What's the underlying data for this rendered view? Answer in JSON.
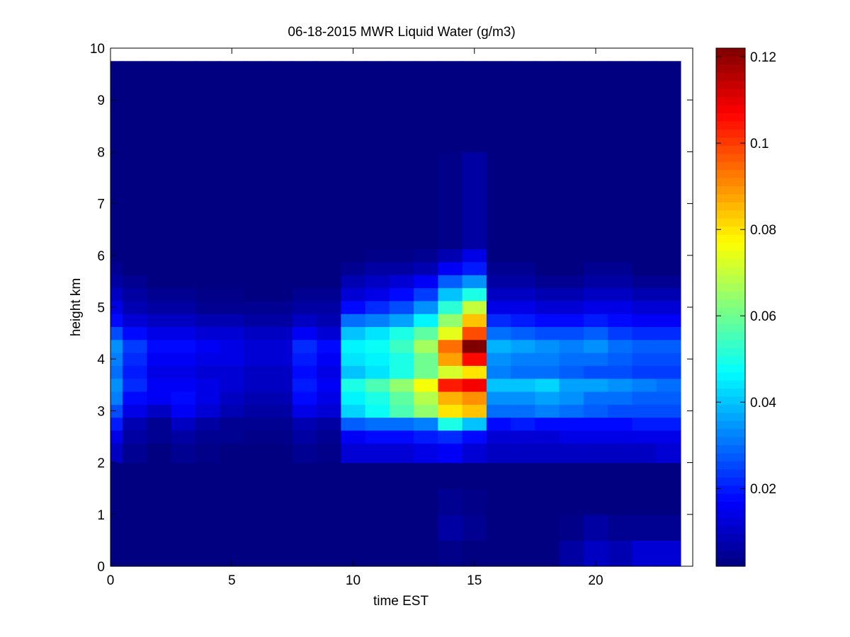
{
  "chart_data": {
    "type": "heatmap",
    "title": "06-18-2015 MWR Liquid Water (g/m3)",
    "xlabel": "time EST",
    "ylabel": "height km",
    "xlim": [
      0,
      24
    ],
    "ylim": [
      0,
      10
    ],
    "xticks": [
      0,
      5,
      10,
      15,
      20
    ],
    "yticks": [
      0,
      1,
      2,
      3,
      4,
      5,
      6,
      7,
      8,
      9,
      10
    ],
    "colorbar": {
      "colormap": "jet",
      "range": [
        0.002,
        0.122
      ],
      "ticks": [
        0.02,
        0.04,
        0.06,
        0.08,
        0.1,
        0.12
      ],
      "tick_labels": [
        "0.02",
        "0.04",
        "0.06",
        "0.08",
        "0.1",
        "0.12"
      ]
    },
    "data_extent": {
      "x": [
        0,
        23.5
      ],
      "y": [
        0,
        9.75
      ]
    },
    "time_hours": [
      0,
      1,
      2,
      3,
      4,
      5,
      6,
      7,
      8,
      9,
      10,
      11,
      12,
      13,
      14,
      15,
      16,
      17,
      18,
      19,
      20,
      21,
      22,
      23
    ],
    "height_km": [
      0.25,
      0.75,
      1.25,
      1.75,
      2.25,
      2.5,
      2.75,
      3.0,
      3.25,
      3.5,
      3.75,
      4.0,
      4.25,
      4.5,
      4.75,
      5.0,
      5.25,
      5.5,
      5.75,
      6.0,
      6.25,
      9.75
    ],
    "values": [
      [
        0.002,
        0.002,
        0.002,
        0.002,
        0.002,
        0.002,
        0.002,
        0.002,
        0.002,
        0.002,
        0.002,
        0.002,
        0.002,
        0.002,
        0.003,
        0.002,
        0.002,
        0.002,
        0.002,
        0.006,
        0.01,
        0.008,
        0.012,
        0.012
      ],
      [
        0.002,
        0.002,
        0.002,
        0.002,
        0.002,
        0.002,
        0.002,
        0.002,
        0.002,
        0.002,
        0.002,
        0.002,
        0.002,
        0.002,
        0.006,
        0.004,
        0.002,
        0.002,
        0.002,
        0.003,
        0.006,
        0.004,
        0.004,
        0.004
      ],
      [
        0.002,
        0.002,
        0.002,
        0.002,
        0.002,
        0.002,
        0.002,
        0.002,
        0.002,
        0.002,
        0.002,
        0.002,
        0.002,
        0.002,
        0.004,
        0.003,
        0.002,
        0.002,
        0.002,
        0.002,
        0.002,
        0.002,
        0.002,
        0.002
      ],
      [
        0.002,
        0.002,
        0.002,
        0.002,
        0.002,
        0.002,
        0.002,
        0.002,
        0.002,
        0.002,
        0.002,
        0.002,
        0.002,
        0.002,
        0.002,
        0.002,
        0.002,
        0.002,
        0.002,
        0.002,
        0.002,
        0.002,
        0.002,
        0.002
      ],
      [
        0.01,
        0.004,
        0.002,
        0.004,
        0.003,
        0.002,
        0.002,
        0.002,
        0.004,
        0.003,
        0.012,
        0.012,
        0.012,
        0.014,
        0.016,
        0.012,
        0.01,
        0.01,
        0.01,
        0.01,
        0.01,
        0.01,
        0.01,
        0.012
      ],
      [
        0.014,
        0.006,
        0.004,
        0.006,
        0.004,
        0.004,
        0.003,
        0.003,
        0.006,
        0.004,
        0.016,
        0.018,
        0.018,
        0.02,
        0.022,
        0.018,
        0.012,
        0.012,
        0.012,
        0.014,
        0.014,
        0.014,
        0.014,
        0.014
      ],
      [
        0.02,
        0.008,
        0.004,
        0.01,
        0.006,
        0.004,
        0.004,
        0.004,
        0.008,
        0.006,
        0.028,
        0.03,
        0.03,
        0.032,
        0.05,
        0.04,
        0.018,
        0.02,
        0.018,
        0.018,
        0.018,
        0.018,
        0.02,
        0.02
      ],
      [
        0.026,
        0.014,
        0.01,
        0.016,
        0.012,
        0.008,
        0.006,
        0.006,
        0.014,
        0.012,
        0.042,
        0.048,
        0.056,
        0.064,
        0.08,
        0.084,
        0.03,
        0.03,
        0.032,
        0.03,
        0.028,
        0.026,
        0.026,
        0.026
      ],
      [
        0.032,
        0.018,
        0.016,
        0.018,
        0.014,
        0.01,
        0.008,
        0.008,
        0.018,
        0.014,
        0.046,
        0.05,
        0.058,
        0.068,
        0.086,
        0.09,
        0.034,
        0.034,
        0.036,
        0.034,
        0.03,
        0.03,
        0.028,
        0.028
      ],
      [
        0.034,
        0.022,
        0.016,
        0.016,
        0.014,
        0.012,
        0.01,
        0.01,
        0.02,
        0.016,
        0.05,
        0.056,
        0.064,
        0.076,
        0.104,
        0.108,
        0.04,
        0.04,
        0.042,
        0.036,
        0.036,
        0.034,
        0.032,
        0.03
      ],
      [
        0.03,
        0.02,
        0.014,
        0.014,
        0.012,
        0.012,
        0.01,
        0.01,
        0.018,
        0.014,
        0.04,
        0.044,
        0.05,
        0.06,
        0.072,
        0.08,
        0.032,
        0.03,
        0.03,
        0.028,
        0.026,
        0.026,
        0.024,
        0.024
      ],
      [
        0.032,
        0.022,
        0.016,
        0.016,
        0.014,
        0.014,
        0.012,
        0.012,
        0.02,
        0.016,
        0.044,
        0.046,
        0.05,
        0.06,
        0.088,
        0.106,
        0.034,
        0.032,
        0.032,
        0.03,
        0.03,
        0.028,
        0.026,
        0.026
      ],
      [
        0.034,
        0.024,
        0.018,
        0.018,
        0.016,
        0.014,
        0.012,
        0.012,
        0.022,
        0.018,
        0.046,
        0.048,
        0.054,
        0.066,
        0.094,
        0.122,
        0.038,
        0.036,
        0.034,
        0.032,
        0.034,
        0.03,
        0.028,
        0.028
      ],
      [
        0.026,
        0.018,
        0.014,
        0.014,
        0.012,
        0.012,
        0.01,
        0.01,
        0.016,
        0.012,
        0.04,
        0.044,
        0.05,
        0.058,
        0.074,
        0.098,
        0.03,
        0.028,
        0.026,
        0.026,
        0.028,
        0.024,
        0.022,
        0.022
      ],
      [
        0.018,
        0.012,
        0.01,
        0.01,
        0.008,
        0.008,
        0.006,
        0.006,
        0.01,
        0.008,
        0.03,
        0.032,
        0.036,
        0.046,
        0.064,
        0.084,
        0.022,
        0.02,
        0.018,
        0.018,
        0.02,
        0.018,
        0.016,
        0.016
      ],
      [
        0.014,
        0.008,
        0.006,
        0.006,
        0.004,
        0.004,
        0.004,
        0.004,
        0.006,
        0.006,
        0.018,
        0.022,
        0.026,
        0.034,
        0.052,
        0.07,
        0.014,
        0.014,
        0.012,
        0.012,
        0.014,
        0.014,
        0.012,
        0.012
      ],
      [
        0.01,
        0.006,
        0.004,
        0.004,
        0.003,
        0.003,
        0.002,
        0.002,
        0.004,
        0.004,
        0.012,
        0.014,
        0.018,
        0.024,
        0.04,
        0.05,
        0.01,
        0.01,
        0.008,
        0.008,
        0.01,
        0.01,
        0.008,
        0.008
      ],
      [
        0.006,
        0.004,
        0.002,
        0.002,
        0.002,
        0.002,
        0.002,
        0.002,
        0.002,
        0.002,
        0.008,
        0.01,
        0.012,
        0.016,
        0.028,
        0.034,
        0.006,
        0.006,
        0.004,
        0.004,
        0.006,
        0.006,
        0.004,
        0.004
      ],
      [
        0.004,
        0.002,
        0.002,
        0.002,
        0.002,
        0.002,
        0.002,
        0.002,
        0.002,
        0.002,
        0.004,
        0.006,
        0.006,
        0.008,
        0.016,
        0.02,
        0.004,
        0.004,
        0.002,
        0.002,
        0.004,
        0.004,
        0.002,
        0.002
      ],
      [
        0.002,
        0.002,
        0.002,
        0.002,
        0.002,
        0.002,
        0.002,
        0.002,
        0.002,
        0.002,
        0.002,
        0.003,
        0.003,
        0.004,
        0.008,
        0.014,
        0.002,
        0.002,
        0.002,
        0.002,
        0.002,
        0.002,
        0.002,
        0.002
      ],
      [
        0.002,
        0.002,
        0.002,
        0.002,
        0.002,
        0.002,
        0.002,
        0.002,
        0.002,
        0.002,
        0.002,
        0.002,
        0.002,
        0.002,
        0.003,
        0.006,
        0.002,
        0.002,
        0.002,
        0.002,
        0.002,
        0.002,
        0.002,
        0.002
      ],
      [
        0.002,
        0.002,
        0.002,
        0.002,
        0.002,
        0.002,
        0.002,
        0.002,
        0.002,
        0.002,
        0.002,
        0.002,
        0.002,
        0.002,
        0.002,
        0.002,
        0.002,
        0.002,
        0.002,
        0.002,
        0.002,
        0.002,
        0.002,
        0.002
      ]
    ]
  }
}
